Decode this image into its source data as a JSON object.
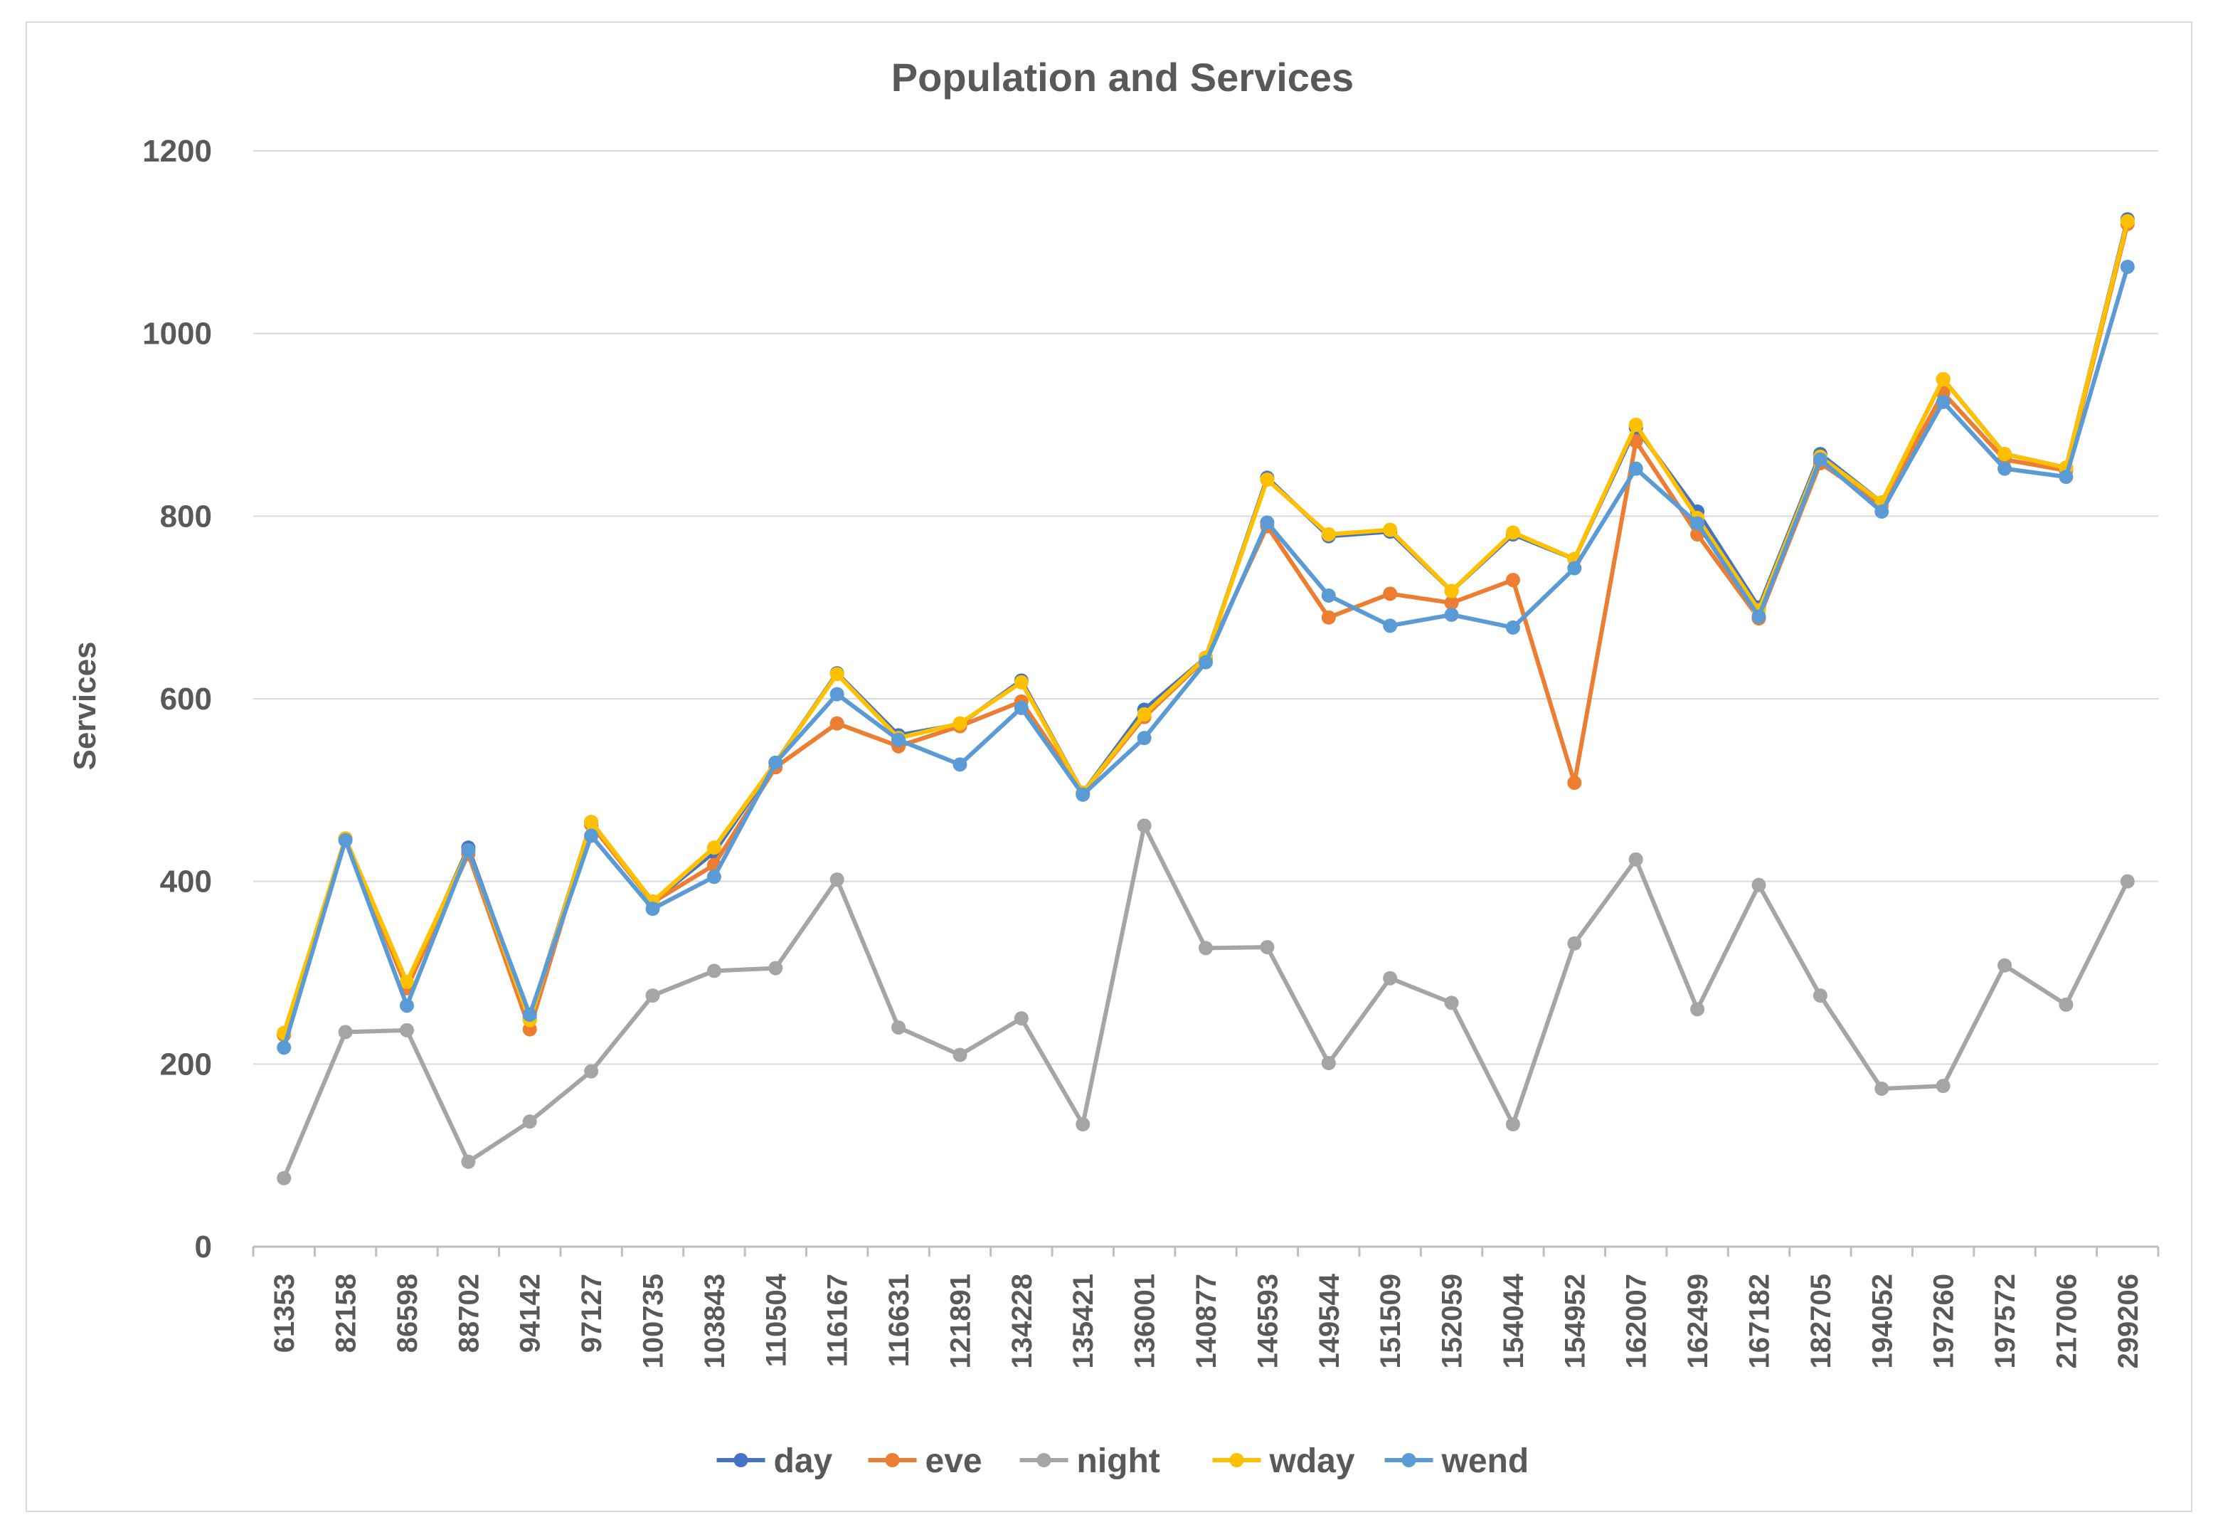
{
  "chart_data": {
    "type": "line",
    "title": "Population and Services",
    "xlabel": "",
    "ylabel": "Services",
    "ylim": [
      0,
      1200
    ],
    "yticks": [
      0,
      200,
      400,
      600,
      800,
      1000,
      1200
    ],
    "grid": true,
    "legend_position": "bottom",
    "categories": [
      "61353",
      "82158",
      "86598",
      "88702",
      "94142",
      "97127",
      "100735",
      "103843",
      "110504",
      "116167",
      "116631",
      "121891",
      "134228",
      "135421",
      "136001",
      "140877",
      "146593",
      "149544",
      "151509",
      "152059",
      "154044",
      "154952",
      "162007",
      "162499",
      "167182",
      "182705",
      "194052",
      "197260",
      "197572",
      "217006",
      "299206"
    ],
    "series": [
      {
        "name": "day",
        "color": "#4472c4",
        "values": [
          232,
          447,
          285,
          437,
          250,
          465,
          378,
          432,
          530,
          628,
          560,
          572,
          620,
          497,
          588,
          645,
          842,
          778,
          783,
          718,
          780,
          753,
          897,
          805,
          700,
          868,
          815,
          950,
          868,
          853,
          1125
        ]
      },
      {
        "name": "eve",
        "color": "#ed7d31",
        "values": [
          232,
          447,
          283,
          430,
          238,
          462,
          377,
          418,
          525,
          573,
          548,
          570,
          597,
          497,
          580,
          644,
          789,
          689,
          715,
          705,
          730,
          508,
          882,
          780,
          688,
          858,
          812,
          935,
          862,
          850,
          1120
        ]
      },
      {
        "name": "night",
        "color": "#a5a5a5",
        "values": [
          75,
          235,
          237,
          93,
          137,
          192,
          275,
          302,
          305,
          402,
          240,
          210,
          250,
          134,
          461,
          327,
          328,
          201,
          294,
          267,
          134,
          332,
          424,
          260,
          396,
          275,
          173,
          176,
          308,
          265,
          400
        ]
      },
      {
        "name": "wday",
        "color": "#ffc000",
        "values": [
          234,
          447,
          290,
          434,
          248,
          465,
          378,
          437,
          530,
          627,
          557,
          573,
          618,
          497,
          583,
          645,
          840,
          780,
          785,
          718,
          782,
          753,
          900,
          798,
          697,
          865,
          815,
          950,
          868,
          853,
          1123
        ]
      },
      {
        "name": "wend",
        "color": "#5b9bd5",
        "values": [
          218,
          445,
          264,
          434,
          254,
          450,
          370,
          405,
          530,
          605,
          555,
          528,
          590,
          495,
          557,
          640,
          793,
          713,
          680,
          692,
          678,
          743,
          852,
          792,
          690,
          862,
          805,
          925,
          852,
          843,
          1073
        ]
      }
    ]
  }
}
